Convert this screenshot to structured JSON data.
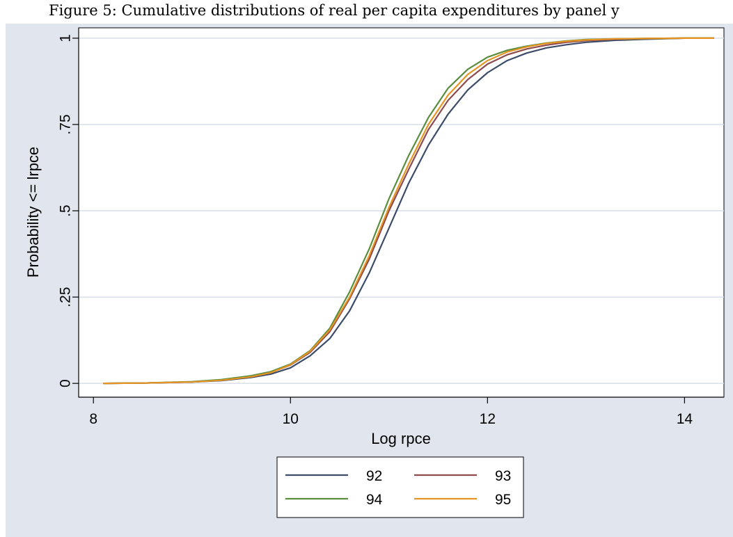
{
  "caption": "Figure 5: Cumulative distributions of real per capita expenditures by panel y",
  "chart_data": {
    "type": "line",
    "title": "",
    "xlabel": "Log rpce",
    "ylabel": "Probability <= lrpce",
    "xlim": [
      7.85,
      14.4
    ],
    "ylim": [
      -0.04,
      1.03
    ],
    "xticks": [
      8,
      10,
      12,
      14
    ],
    "xtick_labels": [
      "8",
      "10",
      "12",
      "14"
    ],
    "yticks": [
      0,
      0.25,
      0.5,
      0.75,
      1
    ],
    "ytick_labels": [
      "0",
      ".25",
      ".5",
      ".75",
      "1"
    ],
    "grid": "horizontal",
    "legend_position": "bottom",
    "legend_columns": 2,
    "background": "#e1e6ee",
    "plot_background": "#ffffff",
    "series": [
      {
        "name": "92",
        "color": "#3b4b69",
        "x": [
          8.1,
          8.5,
          9.0,
          9.3,
          9.6,
          9.8,
          10.0,
          10.2,
          10.4,
          10.6,
          10.8,
          11.0,
          11.2,
          11.4,
          11.6,
          11.8,
          12.0,
          12.2,
          12.4,
          12.6,
          12.8,
          13.0,
          13.3,
          13.6,
          14.0,
          14.3
        ],
        "y": [
          0,
          0.001,
          0.004,
          0.008,
          0.017,
          0.027,
          0.045,
          0.08,
          0.13,
          0.21,
          0.32,
          0.45,
          0.58,
          0.69,
          0.78,
          0.85,
          0.9,
          0.935,
          0.957,
          0.972,
          0.981,
          0.988,
          0.994,
          0.997,
          1.0,
          1.0
        ]
      },
      {
        "name": "93",
        "color": "#8f4a4e",
        "x": [
          8.1,
          8.5,
          9.0,
          9.3,
          9.6,
          9.8,
          10.0,
          10.2,
          10.4,
          10.6,
          10.8,
          11.0,
          11.2,
          11.4,
          11.6,
          11.8,
          12.0,
          12.2,
          12.4,
          12.6,
          12.8,
          13.0,
          13.3,
          13.6,
          14.0,
          14.3
        ],
        "y": [
          0,
          0.001,
          0.004,
          0.01,
          0.02,
          0.032,
          0.053,
          0.09,
          0.15,
          0.245,
          0.36,
          0.5,
          0.62,
          0.735,
          0.82,
          0.88,
          0.925,
          0.952,
          0.969,
          0.98,
          0.988,
          0.993,
          0.997,
          0.999,
          1.0,
          1.0
        ]
      },
      {
        "name": "94",
        "color": "#5a8d3e",
        "x": [
          8.1,
          8.5,
          9.0,
          9.3,
          9.6,
          9.8,
          10.0,
          10.2,
          10.4,
          10.6,
          10.8,
          11.0,
          11.2,
          11.4,
          11.6,
          11.8,
          12.0,
          12.2,
          12.4,
          12.6,
          12.8,
          13.0,
          13.3,
          13.6,
          14.0,
          14.3
        ],
        "y": [
          0,
          0.001,
          0.005,
          0.011,
          0.022,
          0.034,
          0.056,
          0.095,
          0.16,
          0.265,
          0.39,
          0.535,
          0.66,
          0.77,
          0.855,
          0.91,
          0.945,
          0.965,
          0.977,
          0.986,
          0.992,
          0.996,
          0.998,
          0.999,
          1.0,
          1.0
        ]
      },
      {
        "name": "95",
        "color": "#e69422",
        "x": [
          8.1,
          8.5,
          9.0,
          9.3,
          9.6,
          9.8,
          10.0,
          10.2,
          10.4,
          10.6,
          10.8,
          11.0,
          11.2,
          11.4,
          11.6,
          11.8,
          12.0,
          12.2,
          12.4,
          12.6,
          12.8,
          13.0,
          13.3,
          13.6,
          14.0,
          14.3
        ],
        "y": [
          0,
          0.001,
          0.004,
          0.009,
          0.019,
          0.031,
          0.054,
          0.093,
          0.155,
          0.25,
          0.37,
          0.51,
          0.635,
          0.75,
          0.835,
          0.895,
          0.935,
          0.96,
          0.975,
          0.985,
          0.991,
          0.995,
          0.998,
          0.999,
          1.0,
          1.0
        ]
      }
    ]
  }
}
